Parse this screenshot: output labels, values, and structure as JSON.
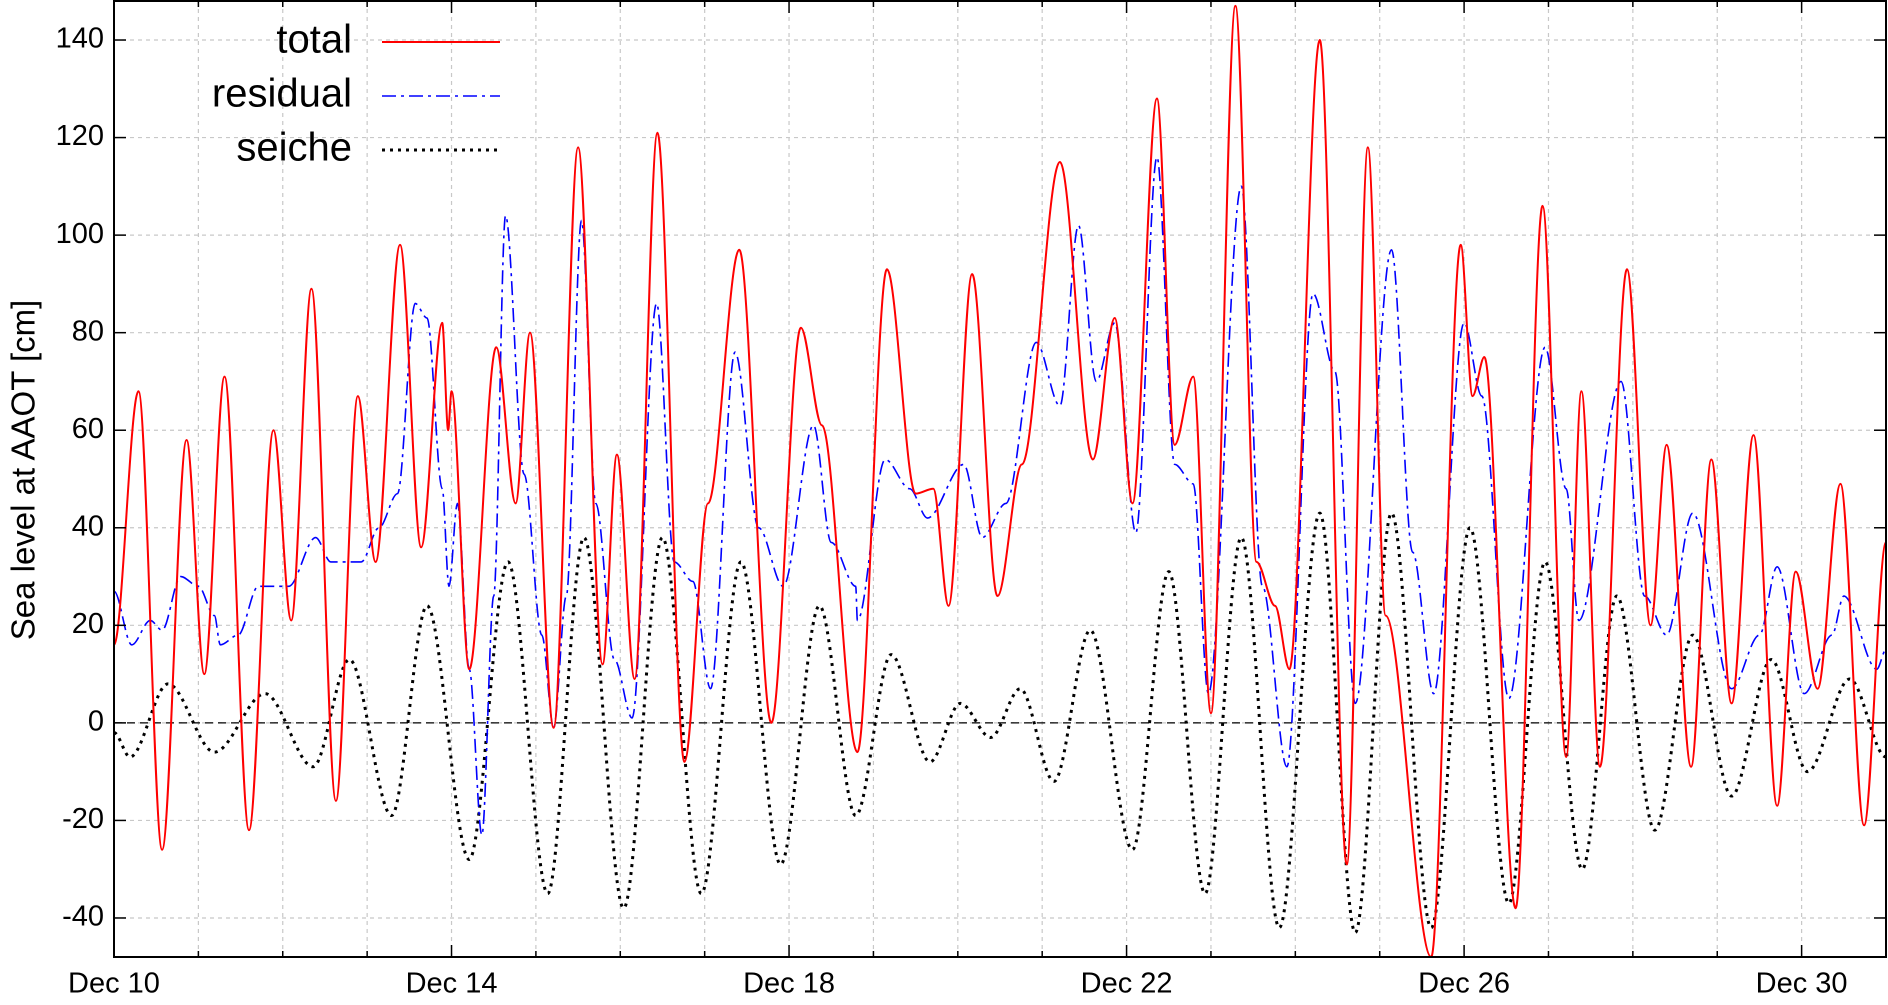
{
  "chart_data": {
    "type": "line",
    "ylabel": "Sea level at AAOT [cm]",
    "xlim": [
      10,
      31
    ],
    "ylim": [
      -48,
      148
    ],
    "xticks": [
      {
        "value": 10,
        "label": "Dec 10"
      },
      {
        "value": 14,
        "label": "Dec 14"
      },
      {
        "value": 18,
        "label": "Dec 18"
      },
      {
        "value": 22,
        "label": "Dec 22"
      },
      {
        "value": 26,
        "label": "Dec 26"
      },
      {
        "value": 30,
        "label": "Dec 30"
      }
    ],
    "xminorticks": [
      11,
      12,
      13,
      15,
      16,
      17,
      19,
      20,
      21,
      23,
      24,
      25,
      27,
      28,
      29
    ],
    "yticks": [
      -40,
      -20,
      0,
      20,
      40,
      60,
      80,
      100,
      120,
      140
    ],
    "grid": true,
    "zeroaxis": true,
    "legend": "top-left",
    "series": [
      {
        "name": "total",
        "color": "#ff0000",
        "style": "solid",
        "x": [
          10,
          10.29,
          10.57,
          10.86,
          11.07,
          11.31,
          11.6,
          11.89,
          12.1,
          12.34,
          12.63,
          12.89,
          13.1,
          13.39,
          13.64,
          13.89,
          13.96,
          14.0,
          14.21,
          14.53,
          14.76,
          14.93,
          15.21,
          15.5,
          15.79,
          15.96,
          16.17,
          16.44,
          16.76,
          17.04,
          17.41,
          17.79,
          18.14,
          18.39,
          18.81,
          19.16,
          19.5,
          19.71,
          19.89,
          20.17,
          20.47,
          20.76,
          21.21,
          21.6,
          21.86,
          22.07,
          22.36,
          22.57,
          22.79,
          23.0,
          23.29,
          23.54,
          23.76,
          23.93,
          24.29,
          24.61,
          24.86,
          25.07,
          25.61,
          25.96,
          26.1,
          26.24,
          26.61,
          26.93,
          27.21,
          27.39,
          27.61,
          27.93,
          28.21,
          28.4,
          28.69,
          28.93,
          29.17,
          29.43,
          29.71,
          29.93,
          30.19,
          30.46,
          30.74,
          31
        ],
        "values": [
          16,
          68,
          -26,
          58,
          10,
          71,
          -22,
          60,
          21,
          89,
          -16,
          67,
          33,
          98,
          36,
          82,
          60,
          68,
          11,
          77,
          45,
          80,
          -1,
          118,
          12,
          55,
          9,
          121,
          -8,
          45,
          97,
          0,
          81,
          61,
          -6,
          93,
          47,
          48,
          24,
          92,
          26,
          53,
          115,
          54,
          83,
          45,
          128,
          57,
          71,
          2,
          147,
          33,
          24,
          11,
          140,
          -29,
          118,
          22,
          -48,
          98,
          67,
          75,
          -38,
          106,
          -7,
          68,
          -9,
          93,
          20,
          57,
          -9,
          54,
          4,
          59,
          -17,
          31,
          7,
          49,
          -21,
          37
        ]
      },
      {
        "name": "residual",
        "color": "#0000ff",
        "style": "dash-dot",
        "x": [
          10,
          10.21,
          10.43,
          10.57,
          10.79,
          11,
          11.19,
          11.26,
          11.47,
          11.71,
          12.07,
          12.39,
          12.57,
          12.93,
          13.14,
          13.36,
          13.57,
          13.71,
          13.89,
          13.97,
          14.07,
          14.21,
          14.36,
          14.5,
          14.64,
          14.86,
          15.07,
          15.21,
          15.36,
          15.54,
          15.71,
          15.93,
          16.14,
          16.43,
          16.64,
          16.86,
          17.07,
          17.36,
          17.64,
          17.93,
          18.29,
          18.5,
          18.79,
          18.81,
          19.14,
          19.43,
          19.64,
          20.07,
          20.29,
          20.57,
          20.93,
          21.21,
          21.43,
          21.64,
          21.86,
          22.11,
          22.36,
          22.57,
          22.79,
          22.97,
          23.36,
          23.61,
          23.9,
          24.21,
          24.47,
          24.71,
          25.14,
          25.39,
          25.64,
          26,
          26.21,
          26.53,
          26.96,
          27.21,
          27.36,
          27.86,
          28.14,
          28.4,
          28.71,
          29.17,
          29.5,
          29.71,
          30.03,
          30.36,
          30.5,
          30.89,
          31
        ],
        "values": [
          27,
          16,
          21,
          19,
          30,
          28,
          22,
          16,
          18,
          28,
          28,
          38,
          33,
          33,
          40,
          47,
          86,
          83,
          48,
          28,
          45,
          11,
          -23,
          26,
          104,
          51,
          18,
          -1,
          26,
          103,
          45,
          13,
          1,
          86,
          33,
          29,
          7,
          76,
          40,
          28,
          61,
          37,
          28,
          21,
          54,
          48,
          42,
          53,
          38,
          45,
          78,
          65,
          102,
          70,
          82,
          39,
          116,
          53,
          49,
          6,
          110,
          28,
          -9,
          88,
          72,
          4,
          97,
          35,
          6,
          82,
          67,
          5,
          77,
          48,
          21,
          70,
          26,
          18,
          43,
          7,
          18,
          32,
          6,
          18,
          26,
          11,
          15
        ]
      },
      {
        "name": "seiche",
        "color": "#000000",
        "style": "dotted",
        "x": [
          10,
          10.19,
          10.64,
          11.19,
          11.79,
          12.36,
          12.79,
          13.29,
          13.71,
          14.21,
          14.67,
          15.14,
          15.57,
          16.04,
          16.5,
          16.96,
          17.43,
          17.9,
          18.36,
          18.79,
          19.21,
          19.67,
          20.03,
          20.39,
          20.74,
          21.14,
          21.57,
          22.07,
          22.5,
          22.93,
          23.36,
          23.81,
          24.29,
          24.71,
          25.14,
          25.61,
          26.07,
          26.53,
          26.96,
          27.4,
          27.81,
          28.26,
          28.71,
          29.17,
          29.64,
          30.07,
          30.57,
          31
        ],
        "values": [
          -2,
          -7,
          8,
          -6,
          6,
          -9,
          13,
          -19,
          24,
          -28,
          33,
          -35,
          38,
          -38,
          38,
          -35,
          33,
          -29,
          24,
          -19,
          14,
          -8,
          4,
          -3,
          7,
          -12,
          19,
          -26,
          31,
          -35,
          38,
          -42,
          43,
          -43,
          43,
          -42,
          40,
          -37,
          33,
          -30,
          26,
          -22,
          18,
          -15,
          13,
          -10,
          9,
          -7
        ]
      }
    ]
  }
}
